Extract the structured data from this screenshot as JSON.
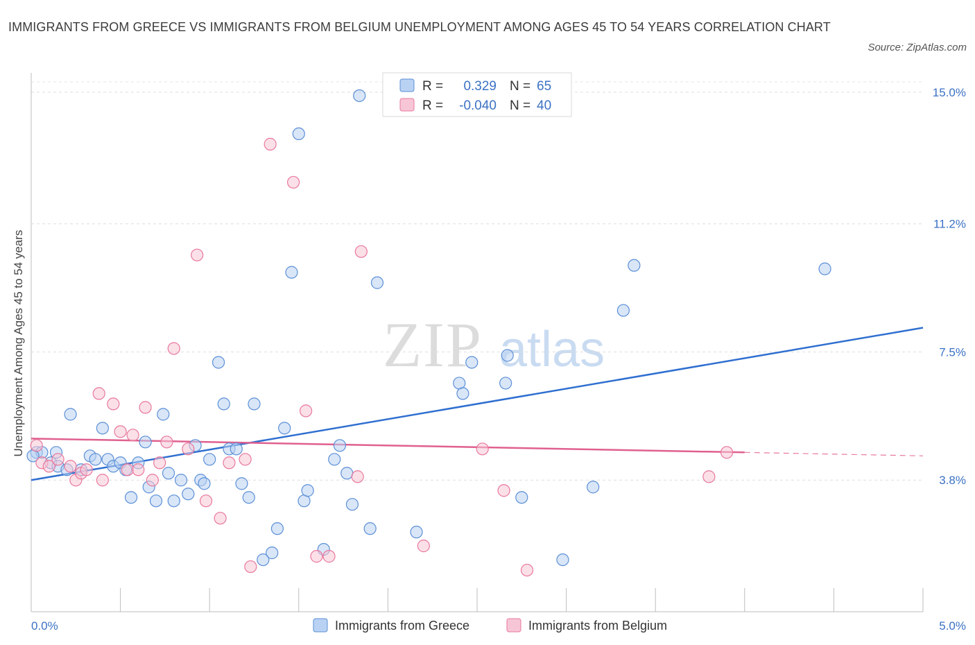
{
  "title": "IMMIGRANTS FROM GREECE VS IMMIGRANTS FROM BELGIUM UNEMPLOYMENT AMONG AGES 45 TO 54 YEARS CORRELATION CHART",
  "source": "Source: ZipAtlas.com",
  "watermark": {
    "zip": "ZIP",
    "atlas": "atlas"
  },
  "colors": {
    "greece": "#5b8fd6",
    "greece_fill": "#b9d2f3",
    "belgium": "#e8779c",
    "belgium_fill": "#f7c6d6",
    "tick": "#3b72c4"
  },
  "legend": {
    "r_label": "R =",
    "n_label": "N =",
    "greece": {
      "r": "0.329",
      "n": "65"
    },
    "belgium": {
      "r": "-0.040",
      "n": "40"
    }
  },
  "chart_data": {
    "type": "scatter",
    "title": "IMMIGRANTS FROM GREECE VS IMMIGRANTS FROM BELGIUM UNEMPLOYMENT AMONG AGES 45 TO 54 YEARS CORRELATION CHART",
    "xlabel": "",
    "ylabel": "Unemployment Among Ages 45 to 54 years",
    "xlim": [
      0,
      5
    ],
    "ylim": [
      0,
      15.3
    ],
    "x_tick_labels": [
      "0.0%",
      "5.0%"
    ],
    "y_ticks": [
      3.8,
      7.5,
      11.2,
      15.0
    ],
    "y_tick_labels": [
      "3.8%",
      "7.5%",
      "11.2%",
      "15.0%"
    ],
    "grid": true,
    "legend_position": "top-center",
    "series": [
      {
        "name": "Immigrants from Greece",
        "r": 0.329,
        "n": 65,
        "trend": [
          [
            0,
            3.8
          ],
          [
            5,
            8.2
          ]
        ],
        "points": [
          [
            0.03,
            4.6
          ],
          [
            0.06,
            4.6
          ],
          [
            0.11,
            4.3
          ],
          [
            0.14,
            4.6
          ],
          [
            0.22,
            5.7
          ],
          [
            0.28,
            4.1
          ],
          [
            0.33,
            4.5
          ],
          [
            0.36,
            4.4
          ],
          [
            0.4,
            5.3
          ],
          [
            0.43,
            4.4
          ],
          [
            0.46,
            4.2
          ],
          [
            0.5,
            4.3
          ],
          [
            0.53,
            4.1
          ],
          [
            0.56,
            3.3
          ],
          [
            0.6,
            4.3
          ],
          [
            0.64,
            4.9
          ],
          [
            0.66,
            3.6
          ],
          [
            0.7,
            3.2
          ],
          [
            0.74,
            5.7
          ],
          [
            0.77,
            4.0
          ],
          [
            0.8,
            3.2
          ],
          [
            0.84,
            3.8
          ],
          [
            0.88,
            3.4
          ],
          [
            0.92,
            4.8
          ],
          [
            0.95,
            3.8
          ],
          [
            0.97,
            3.7
          ],
          [
            1.0,
            4.4
          ],
          [
            1.05,
            7.2
          ],
          [
            1.08,
            6.0
          ],
          [
            1.11,
            4.7
          ],
          [
            1.15,
            4.7
          ],
          [
            1.18,
            3.7
          ],
          [
            1.22,
            3.3
          ],
          [
            1.25,
            6.0
          ],
          [
            1.3,
            1.5
          ],
          [
            1.35,
            1.7
          ],
          [
            1.38,
            2.4
          ],
          [
            1.42,
            5.3
          ],
          [
            1.46,
            9.8
          ],
          [
            1.5,
            13.8
          ],
          [
            1.53,
            3.2
          ],
          [
            1.55,
            3.5
          ],
          [
            1.64,
            1.8
          ],
          [
            1.7,
            4.4
          ],
          [
            1.73,
            4.8
          ],
          [
            1.77,
            4.0
          ],
          [
            1.8,
            3.1
          ],
          [
            1.84,
            14.9
          ],
          [
            1.9,
            2.4
          ],
          [
            1.94,
            9.5
          ],
          [
            2.16,
            2.3
          ],
          [
            2.4,
            6.6
          ],
          [
            2.42,
            6.3
          ],
          [
            2.47,
            7.2
          ],
          [
            2.66,
            6.6
          ],
          [
            2.67,
            7.4
          ],
          [
            2.75,
            3.3
          ],
          [
            2.98,
            1.5
          ],
          [
            3.15,
            3.6
          ],
          [
            3.32,
            8.7
          ],
          [
            3.38,
            10.0
          ],
          [
            4.45,
            9.9
          ],
          [
            0.01,
            4.5
          ],
          [
            0.15,
            4.2
          ],
          [
            0.2,
            4.1
          ]
        ]
      },
      {
        "name": "Immigrants from Belgium",
        "r": -0.04,
        "n": 40,
        "trend": [
          [
            0,
            5.0
          ],
          [
            4.0,
            4.6
          ]
        ],
        "trend_dashed": [
          [
            4.0,
            4.6
          ],
          [
            5.0,
            4.5
          ]
        ],
        "points": [
          [
            0.03,
            4.8
          ],
          [
            0.06,
            4.3
          ],
          [
            0.1,
            4.2
          ],
          [
            0.15,
            4.4
          ],
          [
            0.22,
            4.2
          ],
          [
            0.25,
            3.8
          ],
          [
            0.28,
            4.0
          ],
          [
            0.31,
            4.1
          ],
          [
            0.38,
            6.3
          ],
          [
            0.4,
            3.8
          ],
          [
            0.46,
            6.0
          ],
          [
            0.5,
            5.2
          ],
          [
            0.54,
            4.1
          ],
          [
            0.57,
            5.1
          ],
          [
            0.6,
            4.1
          ],
          [
            0.64,
            5.9
          ],
          [
            0.68,
            3.8
          ],
          [
            0.72,
            4.3
          ],
          [
            0.76,
            4.9
          ],
          [
            0.8,
            7.6
          ],
          [
            0.88,
            4.7
          ],
          [
            0.93,
            10.3
          ],
          [
            0.98,
            3.2
          ],
          [
            1.06,
            2.7
          ],
          [
            1.11,
            4.3
          ],
          [
            1.2,
            4.4
          ],
          [
            1.23,
            1.3
          ],
          [
            1.34,
            13.5
          ],
          [
            1.47,
            12.4
          ],
          [
            1.54,
            5.8
          ],
          [
            1.6,
            1.6
          ],
          [
            1.67,
            1.6
          ],
          [
            1.83,
            3.9
          ],
          [
            1.85,
            10.4
          ],
          [
            2.2,
            1.9
          ],
          [
            2.53,
            4.7
          ],
          [
            2.65,
            3.5
          ],
          [
            2.78,
            1.2
          ],
          [
            3.8,
            3.9
          ],
          [
            3.9,
            4.6
          ]
        ]
      }
    ]
  },
  "bottom_legend": {
    "greece": "Immigrants from Greece",
    "belgium": "Immigrants from Belgium"
  }
}
